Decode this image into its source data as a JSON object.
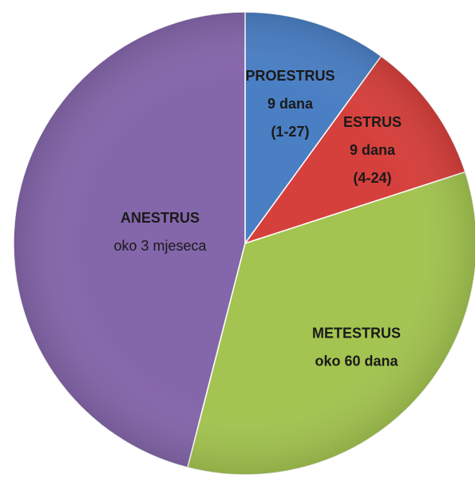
{
  "chart_data": {
    "type": "pie",
    "labels": [
      [
        "PROESTRUS",
        "9 dana",
        "(1-27)"
      ],
      [
        "ESTRUS",
        "9 dana",
        "(4-24)"
      ],
      [
        "METESTRUS",
        "oko 60 dana"
      ],
      [
        "ANESTRUS",
        "oko 3 mjeseca"
      ]
    ],
    "values": [
      10,
      10,
      34,
      46
    ],
    "colors": [
      "#4a7fc4",
      "#d6403c",
      "#a3c450",
      "#8466aa"
    ],
    "start_angle": 0,
    "direction": "clockwise"
  }
}
